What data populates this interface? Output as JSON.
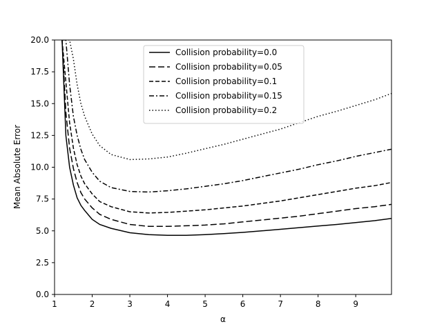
{
  "chart_data": {
    "type": "line",
    "title": "",
    "xlabel": "α",
    "ylabel": "Mean Absolute Error",
    "xlim": [
      1,
      9.95
    ],
    "ylim": [
      0,
      20
    ],
    "xticks": [
      "1",
      "2",
      "3",
      "4",
      "5",
      "6",
      "7",
      "8",
      "9"
    ],
    "yticks": [
      "0.0",
      "2.5",
      "5.0",
      "7.5",
      "10.0",
      "12.5",
      "15.0",
      "17.5",
      "20.0"
    ],
    "grid": false,
    "legend_position": "top-center",
    "x": [
      1.2,
      1.3,
      1.4,
      1.5,
      1.6,
      1.7,
      1.8,
      2.0,
      2.2,
      2.5,
      3.0,
      3.5,
      4.0,
      4.5,
      5.0,
      5.5,
      6.0,
      6.5,
      7.0,
      7.5,
      8.0,
      8.5,
      9.0,
      9.5,
      9.95
    ],
    "series": [
      {
        "name": "Collision probability=0.0",
        "dash": "solid",
        "values": [
          20.0,
          12.5,
          10.0,
          8.6,
          7.6,
          7.0,
          6.6,
          5.9,
          5.5,
          5.2,
          4.85,
          4.7,
          4.65,
          4.65,
          4.7,
          4.78,
          4.88,
          5.0,
          5.12,
          5.25,
          5.38,
          5.5,
          5.65,
          5.8,
          5.98
        ]
      },
      {
        "name": "Collision probability=0.05",
        "dash": "long-dash",
        "values": [
          20.0,
          14.3,
          11.5,
          9.9,
          8.8,
          8.0,
          7.5,
          6.8,
          6.3,
          5.9,
          5.5,
          5.35,
          5.35,
          5.4,
          5.45,
          5.55,
          5.7,
          5.85,
          6.0,
          6.15,
          6.35,
          6.55,
          6.75,
          6.9,
          7.08
        ]
      },
      {
        "name": "Collision probability=0.1",
        "dash": "dash",
        "values": [
          20.0,
          16.7,
          13.5,
          11.5,
          10.2,
          9.3,
          8.7,
          7.9,
          7.3,
          6.9,
          6.5,
          6.4,
          6.45,
          6.55,
          6.65,
          6.8,
          6.95,
          7.15,
          7.35,
          7.6,
          7.85,
          8.1,
          8.35,
          8.55,
          8.8
        ]
      },
      {
        "name": "Collision probability=0.15",
        "dash": "dash-dot",
        "values": [
          20.0,
          20.0,
          16.5,
          14.0,
          12.5,
          11.4,
          10.6,
          9.6,
          8.9,
          8.4,
          8.1,
          8.05,
          8.15,
          8.3,
          8.5,
          8.7,
          8.95,
          9.25,
          9.55,
          9.85,
          10.2,
          10.5,
          10.85,
          11.15,
          11.42
        ]
      },
      {
        "name": "Collision probability=0.2",
        "dash": "dotted",
        "values": [
          20.0,
          20.0,
          20.0,
          18.5,
          16.5,
          15.0,
          14.0,
          12.6,
          11.7,
          11.0,
          10.6,
          10.65,
          10.8,
          11.1,
          11.45,
          11.8,
          12.2,
          12.6,
          13.0,
          13.5,
          14.0,
          14.4,
          14.85,
          15.3,
          15.8
        ]
      }
    ]
  }
}
